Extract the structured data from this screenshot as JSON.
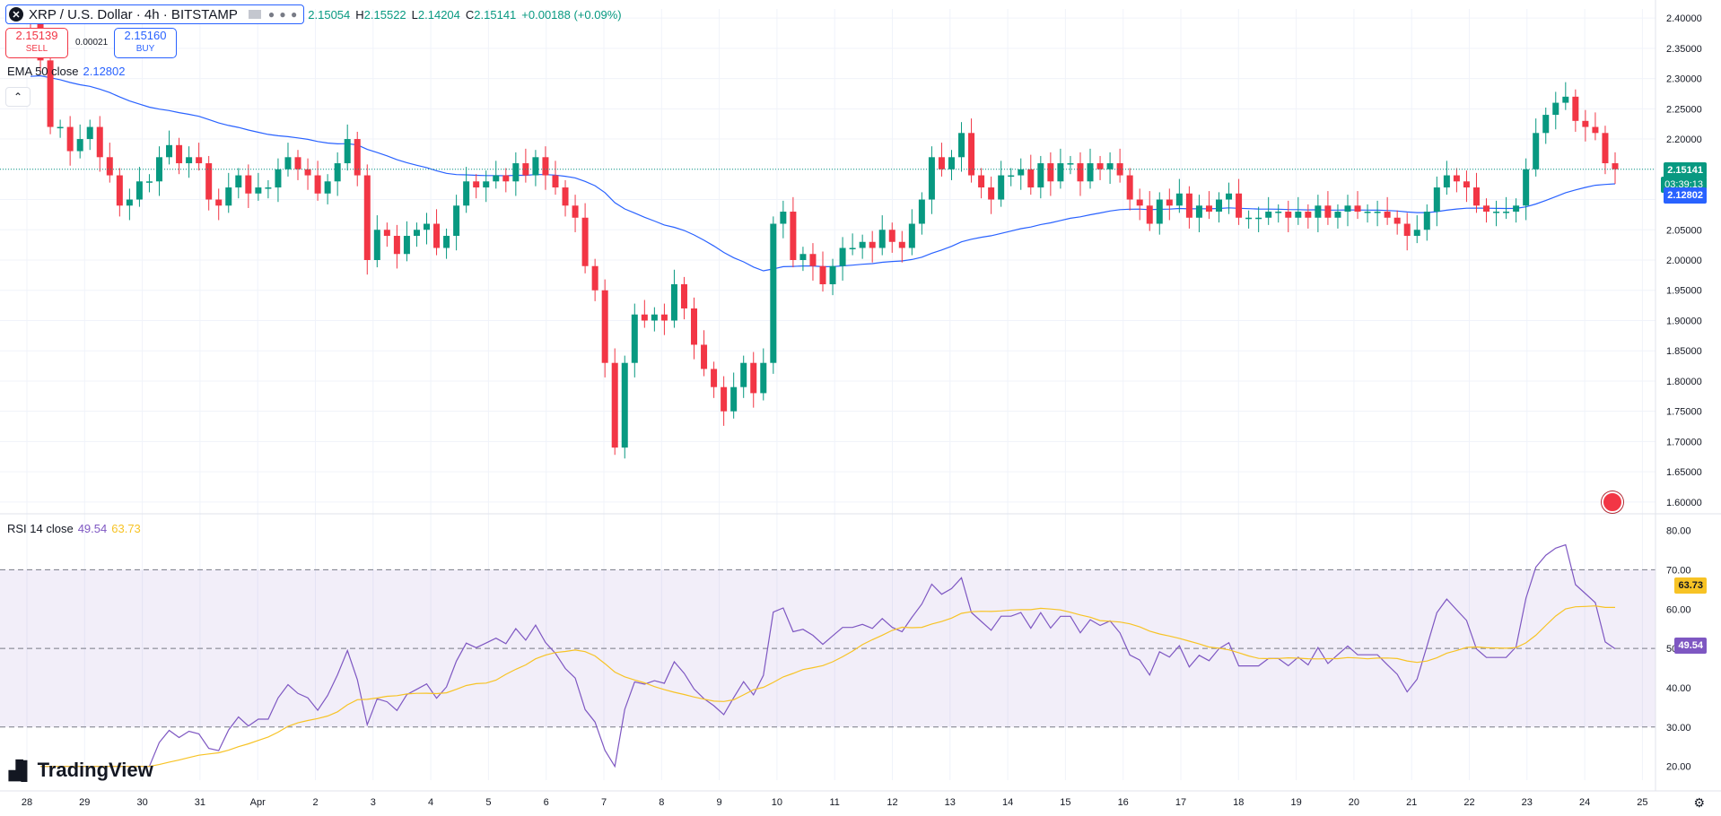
{
  "header": {
    "symbol_title": "XRP / U.S. Dollar · 4h · BITSTAMP",
    "ohlc": {
      "o_label": "O",
      "o_value": "2.15054",
      "h_label": "H",
      "h_value": "2.15522",
      "l_label": "L",
      "l_value": "2.14204",
      "c_label": "C",
      "c_value": "2.15141",
      "change": "+0.00188 (+0.09%)"
    },
    "sell_price": "2.15139",
    "sell_label": "SELL",
    "buy_price": "2.15160",
    "buy_label": "BUY",
    "spread": "0.00021"
  },
  "ema_legend": {
    "name": "EMA 50 close",
    "value": "2.12802"
  },
  "rsi_legend": {
    "name": "RSI 14 close",
    "value": "49.54",
    "ma_value": "63.73"
  },
  "brand": "TradingView",
  "colors": {
    "up": "#089981",
    "down": "#f23645",
    "ema": "#2962ff",
    "rsi": "#7e57c2",
    "rsi_ma": "#f7c325"
  },
  "chart_data": [
    {
      "type": "candlestick",
      "series_label": "XRP / U.S. Dollar · 4h · BITSTAMP",
      "x_ticks": [
        "28",
        "29",
        "30",
        "31",
        "Apr",
        "2",
        "3",
        "4",
        "5",
        "6",
        "7",
        "8",
        "9",
        "10",
        "11",
        "12",
        "13",
        "14",
        "15",
        "16",
        "17",
        "18",
        "19",
        "20",
        "21",
        "22",
        "23",
        "24",
        "25"
      ],
      "y_ticks": [
        "2.40000",
        "2.35000",
        "2.30000",
        "2.25000",
        "2.20000",
        "2.15000",
        "2.10000",
        "2.05000",
        "2.00000",
        "1.95000",
        "1.90000",
        "1.85000",
        "1.80000",
        "1.75000",
        "1.70000",
        "1.65000",
        "1.60000"
      ],
      "ylim": [
        1.585,
        2.415
      ],
      "closes": [
        2.39,
        2.33,
        2.22,
        2.22,
        2.18,
        2.2,
        2.22,
        2.17,
        2.14,
        2.09,
        2.1,
        2.13,
        2.13,
        2.17,
        2.19,
        2.16,
        2.17,
        2.16,
        2.1,
        2.09,
        2.12,
        2.14,
        2.11,
        2.12,
        2.12,
        2.15,
        2.17,
        2.15,
        2.14,
        2.11,
        2.13,
        2.16,
        2.2,
        2.14,
        2.0,
        2.05,
        2.04,
        2.01,
        2.04,
        2.05,
        2.06,
        2.02,
        2.04,
        2.09,
        2.13,
        2.12,
        2.13,
        2.14,
        2.13,
        2.16,
        2.14,
        2.17,
        2.14,
        2.12,
        2.09,
        2.07,
        1.99,
        1.95,
        1.83,
        1.69,
        1.83,
        1.91,
        1.9,
        1.91,
        1.9,
        1.96,
        1.92,
        1.86,
        1.82,
        1.79,
        1.75,
        1.79,
        1.83,
        1.78,
        1.83,
        2.06,
        2.08,
        2.0,
        2.01,
        1.99,
        1.96,
        1.99,
        2.02,
        2.02,
        2.03,
        2.02,
        2.05,
        2.03,
        2.02,
        2.06,
        2.1,
        2.17,
        2.15,
        2.17,
        2.21,
        2.14,
        2.12,
        2.1,
        2.14,
        2.14,
        2.15,
        2.12,
        2.16,
        2.13,
        2.16,
        2.16,
        2.13,
        2.16,
        2.15,
        2.16,
        2.14,
        2.1,
        2.09,
        2.06,
        2.1,
        2.09,
        2.11,
        2.07,
        2.09,
        2.08,
        2.1,
        2.11,
        2.07,
        2.07,
        2.07,
        2.08,
        2.08,
        2.07,
        2.08,
        2.07,
        2.09,
        2.07,
        2.08,
        2.09,
        2.08,
        2.08,
        2.08,
        2.07,
        2.06,
        2.04,
        2.05,
        2.08,
        2.12,
        2.14,
        2.13,
        2.12,
        2.09,
        2.08,
        2.08,
        2.08,
        2.09,
        2.15,
        2.21,
        2.24,
        2.26,
        2.27,
        2.23,
        2.22,
        2.21,
        2.16,
        2.15
      ],
      "ema_50": {
        "name": "EMA 50 close",
        "last_value": 2.12802
      },
      "last_price": "2.15141",
      "countdown": "03:39:13"
    },
    {
      "type": "line",
      "indicator": "RSI 14 close",
      "y_ticks": [
        "80.00",
        "70.00",
        "60.00",
        "50.00",
        "40.00",
        "30.00",
        "20.00"
      ],
      "ylim": [
        16.5,
        81.5
      ],
      "band_upper": 70,
      "band_middle": 50,
      "band_lower": 30,
      "rsi_last": "49.54",
      "rsi_ma_last": "63.73"
    }
  ]
}
